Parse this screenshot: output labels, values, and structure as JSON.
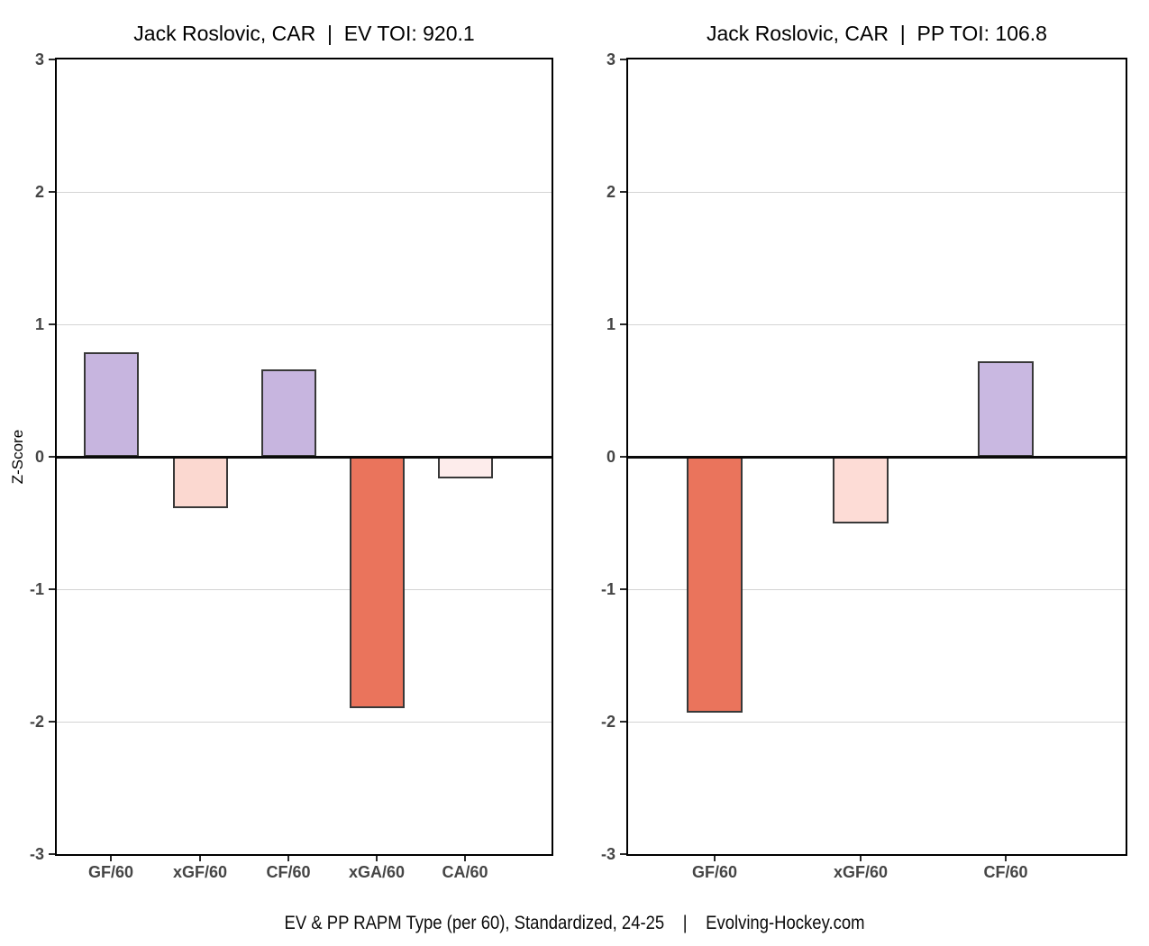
{
  "caption": "EV & PP RAPM Type (per 60), Standardized, 24-25    |    Evolving-Hockey.com",
  "colors": {
    "purple": "#c7b5df",
    "purple_textured": "#c9b8e1",
    "pink_dotted": "#fbd8d0",
    "pale_pink_dotted": "#fdeceb",
    "light_pink": "#fddcd6",
    "orange": "#ea745c",
    "gridline": "#d4d4d4",
    "axis_text": "#454545",
    "panel_border": "#000000"
  },
  "chart_data": [
    {
      "type": "bar",
      "title": "Jack Roslovic, CAR  |  EV TOI: 920.1",
      "player": "Jack Roslovic",
      "team": "CAR",
      "strength": "EV",
      "toi": 920.1,
      "xlabel": "",
      "ylabel": "Z-Score",
      "ylim": [
        -3,
        3
      ],
      "yticks": [
        3,
        2,
        1,
        0,
        -1,
        -2,
        -3
      ],
      "gridlines": [
        2,
        1,
        -1,
        -2
      ],
      "grid": true,
      "legend": false,
      "categories": [
        "GF/60",
        "xGF/60",
        "CF/60",
        "xGA/60",
        "CA/60"
      ],
      "values": [
        0.79,
        -0.39,
        0.66,
        -1.9,
        -0.16
      ],
      "bar_fills": [
        "#c7b5df",
        "#fbd8d0",
        "#c7b5df",
        "#ea745c",
        "#fdeceb"
      ],
      "bar_patterns": [
        "solid",
        "dots-white",
        "dots-white",
        "solid",
        "dots-pink"
      ]
    },
    {
      "type": "bar",
      "title": "Jack Roslovic, CAR  |  PP TOI: 106.8",
      "player": "Jack Roslovic",
      "team": "CAR",
      "strength": "PP",
      "toi": 106.8,
      "xlabel": "",
      "ylabel": "",
      "ylim": [
        -3,
        3
      ],
      "yticks": [
        3,
        2,
        1,
        0,
        -1,
        -2,
        -3
      ],
      "gridlines": [
        2,
        1,
        -1,
        -2
      ],
      "grid": true,
      "legend": false,
      "categories": [
        "GF/60",
        "xGF/60",
        "CF/60"
      ],
      "values": [
        -1.93,
        -0.5,
        0.72
      ],
      "bar_fills": [
        "#ea745c",
        "#fddcd6",
        "#c9b8e1"
      ],
      "bar_patterns": [
        "solid",
        "solid",
        "texture-subtle"
      ]
    }
  ]
}
